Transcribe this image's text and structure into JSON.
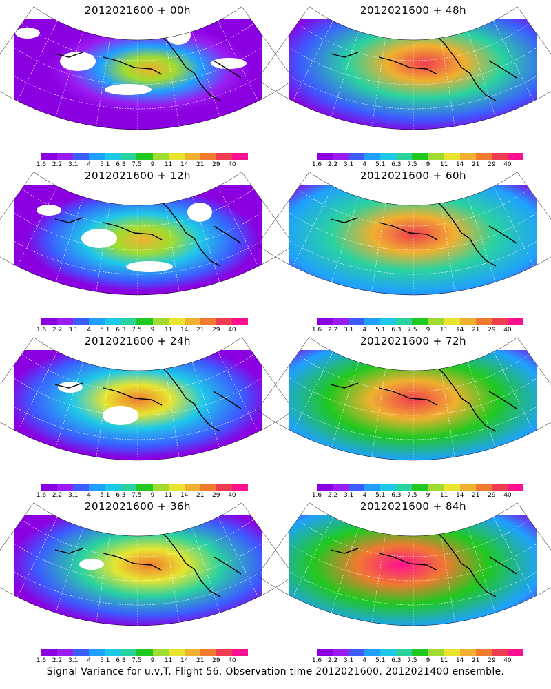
{
  "panels": [
    {
      "title": "2012021600 + 00h",
      "intensity": 0.15,
      "hot": [
        0.55,
        0.45
      ]
    },
    {
      "title": "2012021600 + 12h",
      "intensity": 0.3,
      "hot": [
        0.52,
        0.5
      ]
    },
    {
      "title": "2012021600 + 24h",
      "intensity": 0.45,
      "hot": [
        0.5,
        0.45
      ]
    },
    {
      "title": "2012021600 + 36h",
      "intensity": 0.55,
      "hot": [
        0.55,
        0.45
      ]
    },
    {
      "title": "2012021600 + 48h",
      "intensity": 0.7,
      "hot": [
        0.55,
        0.4
      ]
    },
    {
      "title": "2012021600 + 60h",
      "intensity": 0.78,
      "hot": [
        0.5,
        0.45
      ]
    },
    {
      "title": "2012021600 + 72h",
      "intensity": 0.85,
      "hot": [
        0.5,
        0.45
      ]
    },
    {
      "title": "2012021600 + 84h",
      "intensity": 0.9,
      "hot": [
        0.45,
        0.45
      ]
    }
  ],
  "colorbar": {
    "labels": [
      "1.6",
      "2.2",
      "3.1",
      "4",
      "5.1",
      "6.3",
      "7.5",
      "9",
      "11",
      "14",
      "21",
      "29",
      "40"
    ],
    "colors": [
      "#8a00e0",
      "#9a1cf0",
      "#3c5cff",
      "#1fa0ff",
      "#1ec8e8",
      "#2ad2a0",
      "#20c820",
      "#a0dc30",
      "#e8e430",
      "#f0b030",
      "#f07a30",
      "#f03c50",
      "#ff1090"
    ]
  },
  "footer": "Signal Variance for u,v,T. Flight 56. Observation time 2012021600. 2012021400 ensemble."
}
